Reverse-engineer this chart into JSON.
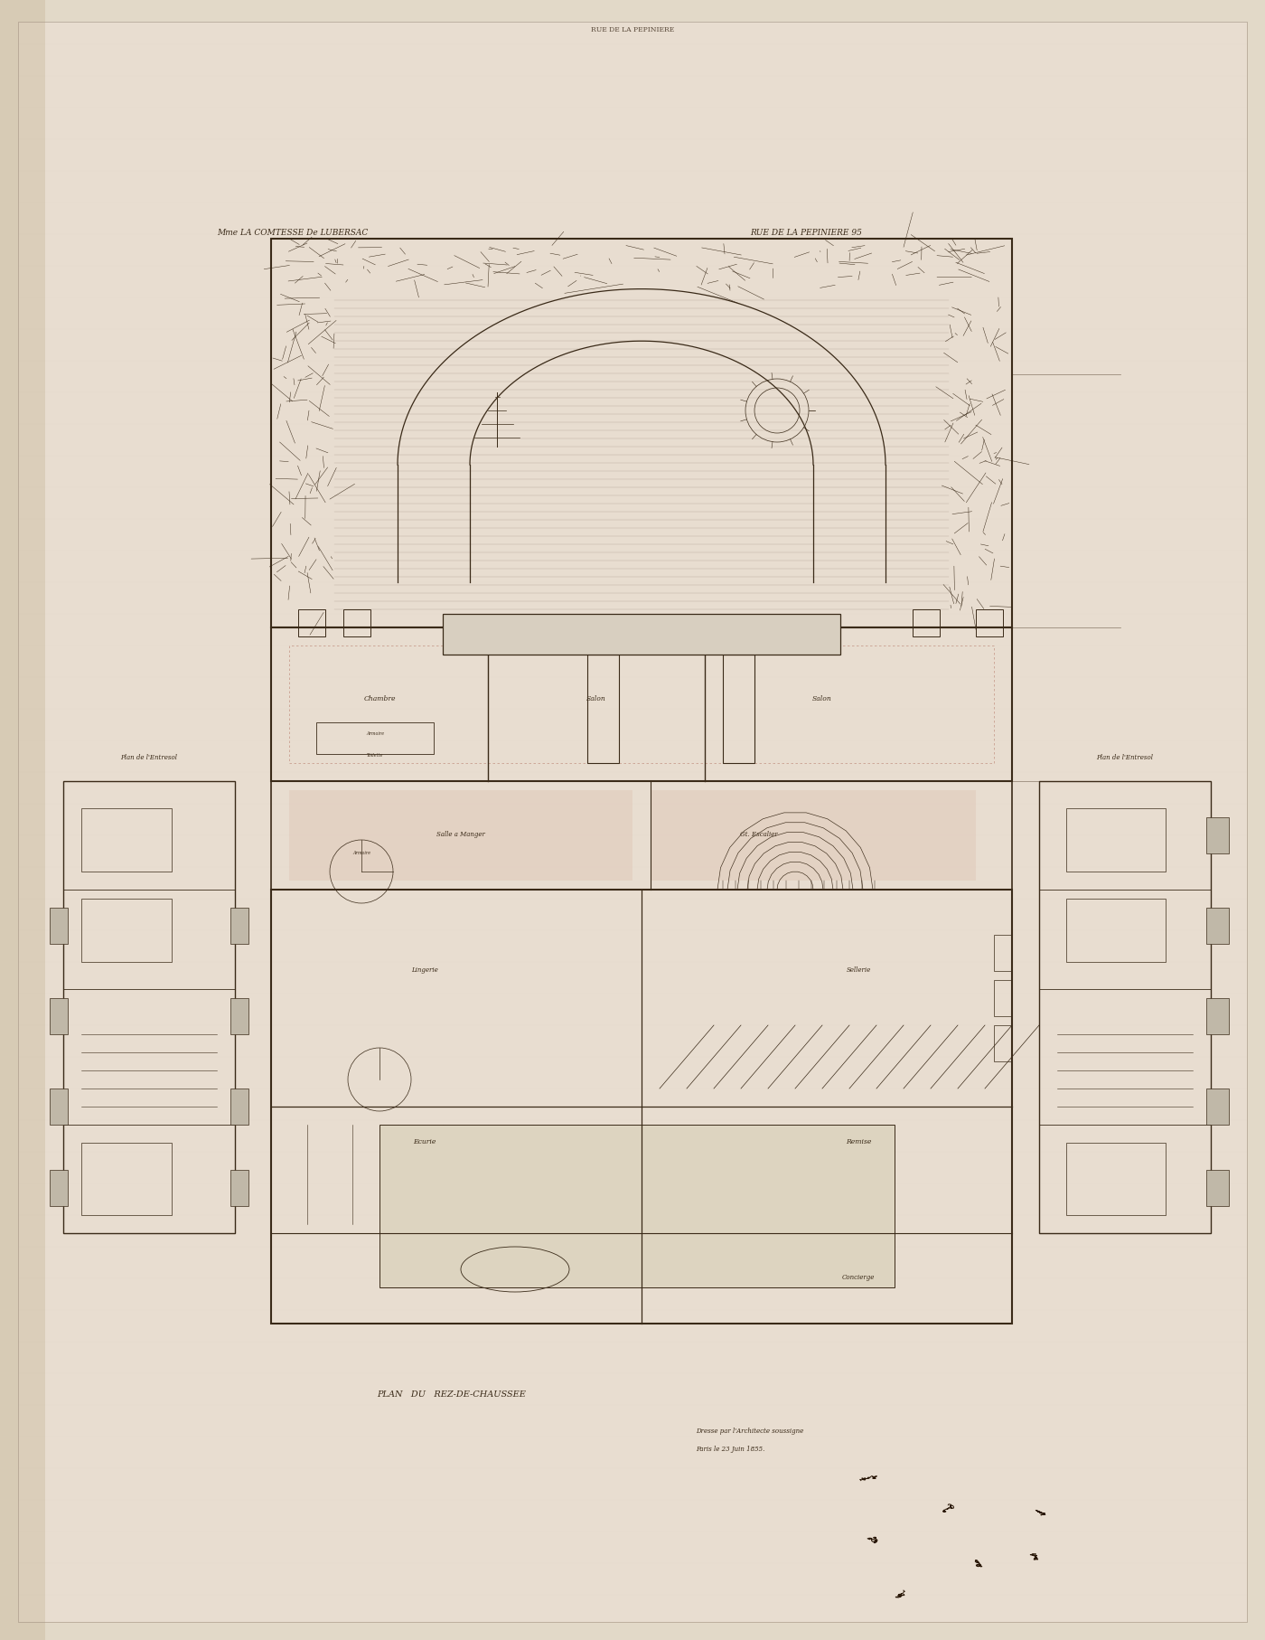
{
  "bg_color": "#e2d9c8",
  "paper_color": "#e8ddd0",
  "line_color": "#3a2a18",
  "light_line_color": "#8a7a6a",
  "pink_color": "#c9a090",
  "title_left": "Mme LA COMTESSE De LUBERSAC",
  "title_right": "RUE DE LA PEPINIERE 95",
  "label_chambre": "Chambre",
  "label_salon1": "Salon",
  "label_salon2": "Salon",
  "label_salle_manger": "Salle a Manger",
  "label_grand_escalier": "Gt. Escalier",
  "label_lingerie": "Lingerie",
  "label_sellerie": "Sellerie",
  "label_ecurie": "Ecurie",
  "label_remise": "Remise",
  "label_concierge": "Concierge",
  "label_armoire1": "Armoire",
  "label_toilette": "Toilette",
  "label_armoire2": "Armoire",
  "label_entresol_left": "Plan de l'Entresol",
  "label_entresol_right": "Plan de l'Entresol",
  "bottom_label": "PLAN   DU   REZ-DE-CHAUSSEE",
  "note_line1": "Dresse par l'Architecte soussigne",
  "note_line2": "Paris le 23 Juin 1855."
}
